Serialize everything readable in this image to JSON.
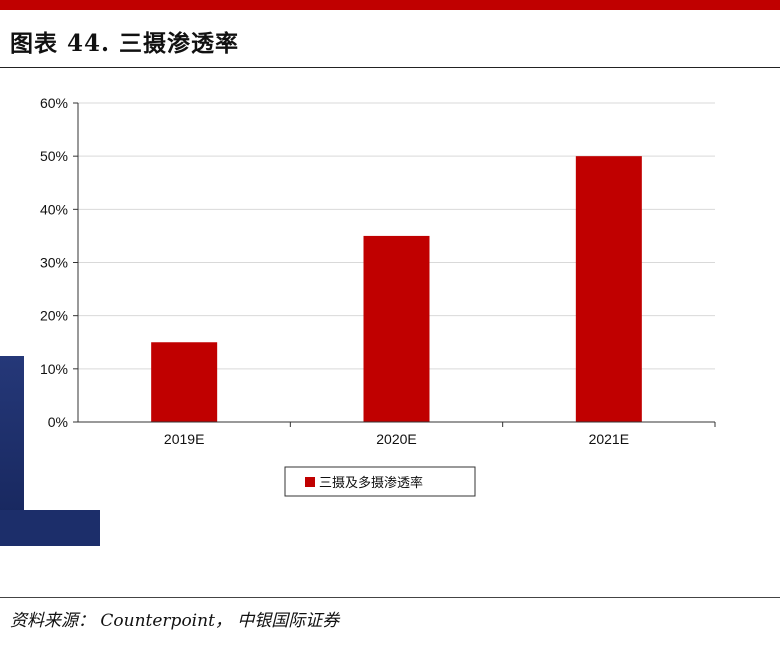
{
  "figure": {
    "title": "图表 44. 三摄渗透率",
    "source": "资料来源： Counterpoint， 中银国际证券"
  },
  "colors": {
    "bar": "#c00000",
    "accent_bar": "#c00000",
    "grid": "#d9d9d9",
    "axis": "#333333"
  },
  "chart_data": {
    "type": "bar",
    "categories": [
      "2019E",
      "2020E",
      "2021E"
    ],
    "series": [
      {
        "name": "三摄及多摄渗透率",
        "values": [
          15,
          35,
          50
        ]
      }
    ],
    "ylim": [
      0,
      60
    ],
    "yticks": [
      0,
      10,
      20,
      30,
      40,
      50,
      60
    ],
    "ytick_labels": [
      "0%",
      "10%",
      "20%",
      "30%",
      "40%",
      "50%",
      "60%"
    ],
    "grid": true,
    "legend": "bottom-center"
  }
}
